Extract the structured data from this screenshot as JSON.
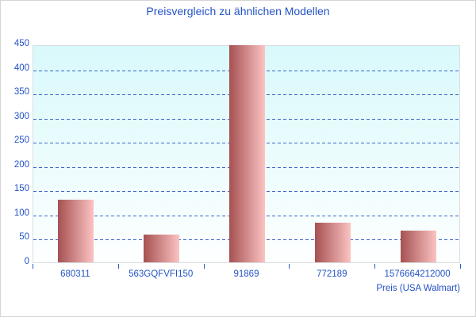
{
  "window": {
    "background": "#ffffff",
    "border_color": "#d4d4d4"
  },
  "chart_data": {
    "type": "bar",
    "title": "Preisvergleich zu ähnlichen Modellen",
    "xlabel": "Preis (USA Walmart)",
    "ylabel": "",
    "categories": [
      "680311",
      "563GQFVFI150",
      "91869",
      "772189",
      "1576664212000"
    ],
    "values": [
      130,
      58,
      448,
      82,
      65
    ],
    "ylim": [
      0,
      450
    ],
    "ytick_step": 50,
    "grid": "horizontal-dashed",
    "legend": "none",
    "colors": {
      "title_text": "#2353c6",
      "axis_text": "#2353c6",
      "gridline": "#3c64c8",
      "axis_tick": "#2b5bc8",
      "plot_background_top": "#d8f9fb",
      "plot_background_bottom": "#feffff",
      "plot_border": "#d8dde0",
      "bar_gradient_dark": "#a65151",
      "bar_gradient_light": "#fcc3c3"
    }
  }
}
